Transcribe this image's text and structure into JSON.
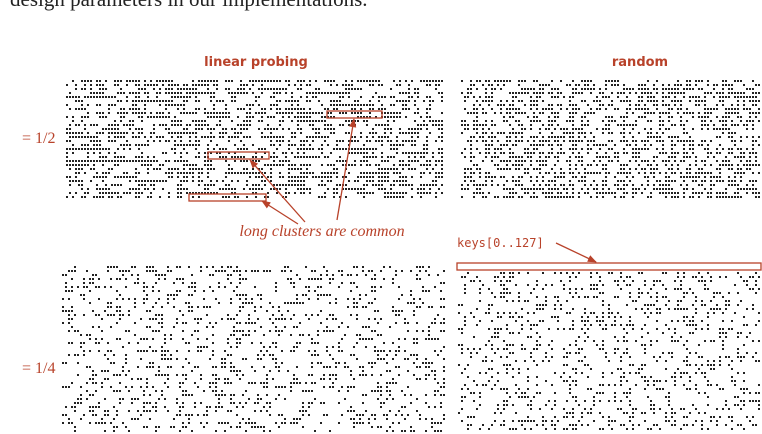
{
  "header": {
    "text": "design parameters in our implementations."
  },
  "figure": {
    "column_labels": [
      "linear probing",
      "random"
    ],
    "row_labels": [
      "= 1/2",
      "= 1/4"
    ],
    "annotation": "long clusters are common",
    "keys_label": "keys[0..127]"
  }
}
